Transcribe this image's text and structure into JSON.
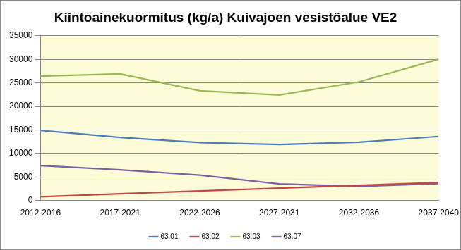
{
  "chart_data": {
    "type": "line",
    "title": "Kiintoainekuormitus (kg/a) Kuivajoen vesistöalue VE2",
    "categories": [
      "2012-2016",
      "2017-2021",
      "2022-2026",
      "2027-2031",
      "2032-2036",
      "2037-2040"
    ],
    "series": [
      {
        "name": "63.01",
        "color": "#4a7ebb",
        "values": [
          14900,
          13400,
          12300,
          11900,
          12400,
          13600
        ]
      },
      {
        "name": "63.02",
        "color": "#be4b48",
        "values": [
          800,
          1400,
          2000,
          2600,
          3200,
          3800
        ]
      },
      {
        "name": "63.03",
        "color": "#98b954",
        "values": [
          26400,
          26900,
          23300,
          22400,
          25200,
          30000
        ]
      },
      {
        "name": "63.07",
        "color": "#7d60a0",
        "values": [
          7400,
          6500,
          5400,
          3500,
          3000,
          3600
        ]
      }
    ],
    "ylim": [
      0,
      35000
    ],
    "yticks": [
      0,
      5000,
      10000,
      15000,
      20000,
      25000,
      30000,
      35000
    ],
    "grid": true,
    "legend": "bottom"
  }
}
